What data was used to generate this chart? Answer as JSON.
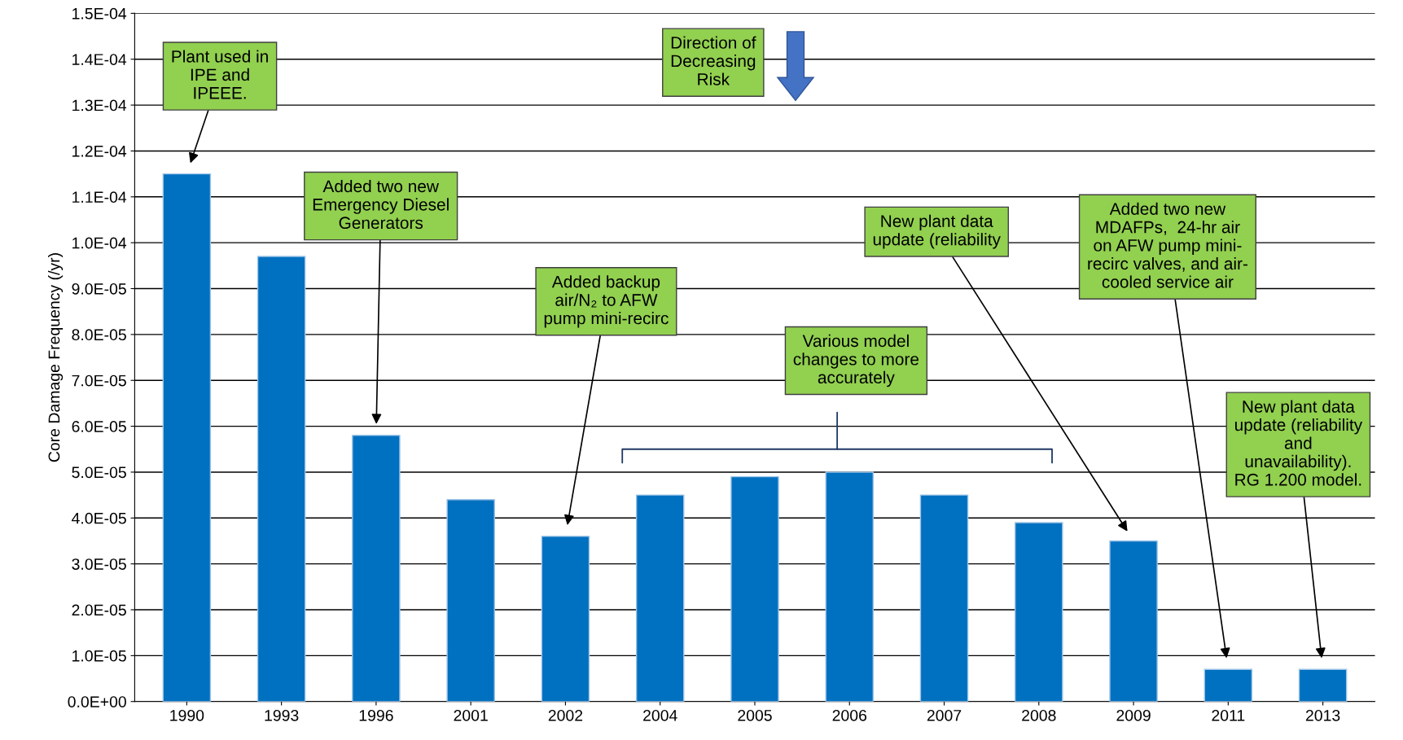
{
  "chart_data": {
    "type": "bar",
    "ylabel": "Core Damage Frequency (/yr)",
    "categories": [
      "1990",
      "1993",
      "1996",
      "2001",
      "2002",
      "2004",
      "2005",
      "2006",
      "2007",
      "2008",
      "2009",
      "2011",
      "2013"
    ],
    "values": [
      0.000115,
      9.7e-05,
      5.8e-05,
      4.4e-05,
      3.6e-05,
      4.5e-05,
      4.9e-05,
      5e-05,
      4.5e-05,
      3.9e-05,
      3.5e-05,
      7e-06,
      7e-06
    ],
    "color": "#0070c0",
    "ylim": [
      0,
      0.00015
    ],
    "yticks": [
      {
        "value": 0,
        "label": "0.0E+00"
      },
      {
        "value": 1e-05,
        "label": "1.0E-05"
      },
      {
        "value": 2e-05,
        "label": "2.0E-05"
      },
      {
        "value": 3e-05,
        "label": "3.0E-05"
      },
      {
        "value": 4e-05,
        "label": "4.0E-05"
      },
      {
        "value": 5e-05,
        "label": "5.0E-05"
      },
      {
        "value": 6e-05,
        "label": "6.0E-05"
      },
      {
        "value": 7e-05,
        "label": "7.0E-05"
      },
      {
        "value": 8e-05,
        "label": "8.0E-05"
      },
      {
        "value": 9e-05,
        "label": "9.0E-05"
      },
      {
        "value": 0.0001,
        "label": "1.0E-04"
      },
      {
        "value": 0.00011,
        "label": "1.1E-04"
      },
      {
        "value": 0.00012,
        "label": "1.2E-04"
      },
      {
        "value": 0.00013,
        "label": "1.3E-04"
      },
      {
        "value": 0.00014,
        "label": "1.4E-04"
      },
      {
        "value": 0.00015,
        "label": "1.5E-04"
      }
    ],
    "grid": "y",
    "annotations": [
      "Plant used in\nIPE and\nIPEEE.",
      "Added two new\nEmergency Diesel\nGenerators",
      "Added backup\nair/N₂ to AFW\npump mini-recirc",
      "Various model\nchanges to more\naccurately",
      "New plant data\nupdate (reliability",
      "Added two new\nMDAFPs,  24-hr air\non AFW pump mini-\nrecirc valves, and air-\ncooled service air",
      "New plant data\nupdate (reliability\nand\nunavailability).\nRG 1.200 model.",
      "Direction of\nDecreasing\nRisk"
    ]
  }
}
